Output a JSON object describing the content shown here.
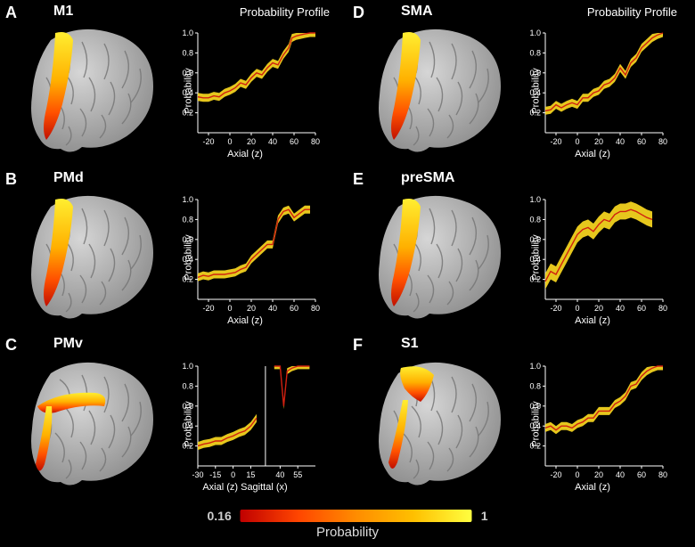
{
  "panels": [
    {
      "letter": "A",
      "title": "M1",
      "chartTitle": "Probability Profile",
      "ylim": [
        0,
        1
      ],
      "xlim": [
        -30,
        80
      ],
      "xaxis_label": "Axial  (z)",
      "yaxis_label": "Probability",
      "yticks": [
        0.2,
        0.4,
        0.6,
        0.8,
        1.0
      ],
      "xticks": [
        -20,
        0,
        20,
        40,
        60,
        80
      ],
      "line_color": "#d02010",
      "band_color": "#ffdd20",
      "data": [
        [
          -30,
          0.36
        ],
        [
          -25,
          0.35
        ],
        [
          -20,
          0.35
        ],
        [
          -15,
          0.37
        ],
        [
          -10,
          0.36
        ],
        [
          -5,
          0.4
        ],
        [
          0,
          0.42
        ],
        [
          5,
          0.45
        ],
        [
          10,
          0.5
        ],
        [
          15,
          0.48
        ],
        [
          20,
          0.55
        ],
        [
          25,
          0.6
        ],
        [
          30,
          0.58
        ],
        [
          35,
          0.65
        ],
        [
          40,
          0.7
        ],
        [
          45,
          0.68
        ],
        [
          50,
          0.78
        ],
        [
          55,
          0.85
        ],
        [
          58,
          0.95
        ],
        [
          62,
          0.97
        ],
        [
          66,
          0.98
        ],
        [
          70,
          0.99
        ],
        [
          75,
          1.0
        ],
        [
          80,
          1.0
        ]
      ]
    },
    {
      "letter": "B",
      "title": "PMd",
      "chartTitle": "",
      "ylim": [
        0,
        1
      ],
      "xlim": [
        -30,
        80
      ],
      "xaxis_label": "Axial  (z)",
      "yaxis_label": "Probability",
      "yticks": [
        0.2,
        0.4,
        0.6,
        0.8,
        1.0
      ],
      "xticks": [
        -20,
        0,
        20,
        40,
        60,
        80
      ],
      "line_color": "#d02010",
      "band_color": "#ffdd20",
      "data": [
        [
          -30,
          0.22
        ],
        [
          -25,
          0.24
        ],
        [
          -20,
          0.23
        ],
        [
          -15,
          0.25
        ],
        [
          -10,
          0.25
        ],
        [
          -5,
          0.25
        ],
        [
          0,
          0.26
        ],
        [
          5,
          0.27
        ],
        [
          10,
          0.3
        ],
        [
          15,
          0.32
        ],
        [
          20,
          0.4
        ],
        [
          25,
          0.45
        ],
        [
          30,
          0.5
        ],
        [
          35,
          0.55
        ],
        [
          40,
          0.55
        ],
        [
          45,
          0.8
        ],
        [
          50,
          0.88
        ],
        [
          55,
          0.9
        ],
        [
          60,
          0.82
        ],
        [
          65,
          0.86
        ],
        [
          70,
          0.9
        ],
        [
          75,
          0.9
        ]
      ]
    },
    {
      "letter": "C",
      "title": "PMv",
      "chartTitle": "",
      "ylim": [
        0,
        1
      ],
      "xlim": [
        -30,
        70
      ],
      "xaxis_label": "Axial (z)        Sagittal (x)",
      "yaxis_label": "Probability",
      "yticks": [
        0.2,
        0.4,
        0.6,
        0.8,
        1.0
      ],
      "xticks": [
        -30,
        -15,
        0,
        15,
        40,
        55
      ],
      "line_color": "#d02010",
      "band_color": "#ffdd20",
      "split": true,
      "data": [
        [
          -30,
          0.2
        ],
        [
          -25,
          0.22
        ],
        [
          -20,
          0.23
        ],
        [
          -15,
          0.25
        ],
        [
          -10,
          0.25
        ],
        [
          -5,
          0.28
        ],
        [
          0,
          0.3
        ],
        [
          5,
          0.33
        ],
        [
          10,
          0.35
        ],
        [
          15,
          0.4
        ],
        [
          20,
          0.48
        ]
      ],
      "data2": [
        [
          35,
          1.0
        ],
        [
          40,
          1.0
        ],
        [
          43,
          0.6
        ],
        [
          46,
          0.95
        ],
        [
          50,
          0.98
        ],
        [
          55,
          1.0
        ],
        [
          60,
          1.0
        ],
        [
          65,
          1.0
        ]
      ]
    },
    {
      "letter": "D",
      "title": "SMA",
      "chartTitle": "Probability Profile",
      "ylim": [
        0,
        1
      ],
      "xlim": [
        -30,
        80
      ],
      "xaxis_label": "Axial  (z)",
      "yaxis_label": "Probability",
      "yticks": [
        0.2,
        0.4,
        0.6,
        0.8,
        1.0
      ],
      "xticks": [
        -20,
        0,
        20,
        40,
        60,
        80
      ],
      "line_color": "#d02010",
      "band_color": "#ffdd20",
      "data": [
        [
          -30,
          0.22
        ],
        [
          -25,
          0.23
        ],
        [
          -20,
          0.28
        ],
        [
          -15,
          0.25
        ],
        [
          -10,
          0.28
        ],
        [
          -5,
          0.3
        ],
        [
          0,
          0.28
        ],
        [
          5,
          0.35
        ],
        [
          10,
          0.35
        ],
        [
          15,
          0.4
        ],
        [
          20,
          0.42
        ],
        [
          25,
          0.48
        ],
        [
          30,
          0.5
        ],
        [
          35,
          0.55
        ],
        [
          40,
          0.65
        ],
        [
          45,
          0.58
        ],
        [
          50,
          0.7
        ],
        [
          55,
          0.75
        ],
        [
          60,
          0.85
        ],
        [
          65,
          0.9
        ],
        [
          70,
          0.95
        ],
        [
          75,
          0.98
        ],
        [
          80,
          1.0
        ]
      ]
    },
    {
      "letter": "E",
      "title": "preSMA",
      "chartTitle": "",
      "ylim": [
        0,
        1
      ],
      "xlim": [
        -30,
        80
      ],
      "xaxis_label": "Axial  (z)",
      "yaxis_label": "Probability",
      "yticks": [
        0.2,
        0.4,
        0.6,
        0.8,
        1.0
      ],
      "xticks": [
        -20,
        0,
        20,
        40,
        60,
        80
      ],
      "line_color": "#d02010",
      "band_color": "#ffdd20",
      "data": [
        [
          -30,
          0.18
        ],
        [
          -25,
          0.28
        ],
        [
          -20,
          0.25
        ],
        [
          -15,
          0.35
        ],
        [
          -10,
          0.45
        ],
        [
          -5,
          0.55
        ],
        [
          0,
          0.65
        ],
        [
          5,
          0.7
        ],
        [
          10,
          0.72
        ],
        [
          15,
          0.68
        ],
        [
          20,
          0.75
        ],
        [
          25,
          0.8
        ],
        [
          30,
          0.78
        ],
        [
          35,
          0.85
        ],
        [
          40,
          0.88
        ],
        [
          45,
          0.88
        ],
        [
          50,
          0.9
        ],
        [
          55,
          0.88
        ],
        [
          60,
          0.85
        ],
        [
          65,
          0.82
        ],
        [
          70,
          0.8
        ]
      ]
    },
    {
      "letter": "F",
      "title": "S1",
      "chartTitle": "",
      "ylim": [
        0,
        1
      ],
      "xlim": [
        -30,
        80
      ],
      "xaxis_label": "Axial  (z)",
      "yaxis_label": "Probability",
      "yticks": [
        0.2,
        0.4,
        0.6,
        0.8,
        1.0
      ],
      "xticks": [
        -20,
        0,
        20,
        40,
        60,
        80
      ],
      "line_color": "#d02010",
      "band_color": "#ffdd20",
      "data": [
        [
          -30,
          0.38
        ],
        [
          -25,
          0.4
        ],
        [
          -20,
          0.36
        ],
        [
          -15,
          0.4
        ],
        [
          -10,
          0.4
        ],
        [
          -5,
          0.38
        ],
        [
          0,
          0.42
        ],
        [
          5,
          0.44
        ],
        [
          10,
          0.48
        ],
        [
          15,
          0.48
        ],
        [
          20,
          0.55
        ],
        [
          25,
          0.55
        ],
        [
          30,
          0.55
        ],
        [
          35,
          0.62
        ],
        [
          40,
          0.65
        ],
        [
          45,
          0.7
        ],
        [
          50,
          0.8
        ],
        [
          55,
          0.82
        ],
        [
          60,
          0.9
        ],
        [
          65,
          0.95
        ],
        [
          70,
          0.98
        ],
        [
          75,
          1.0
        ],
        [
          80,
          1.0
        ]
      ]
    }
  ],
  "colorbar": {
    "min_label": "0.16",
    "max_label": "1",
    "title": "Probability",
    "gradient": [
      "#c00000",
      "#ff4500",
      "#ff8c00",
      "#ffc000",
      "#ffff40"
    ]
  },
  "brain_gray": "#b8b8b8",
  "brain_highlight_gradient": [
    "#c01000",
    "#ff6000",
    "#ffb000",
    "#ffe030"
  ],
  "background": "#000000",
  "tick_fontsize": 10,
  "label_fontsize": 11,
  "title_fontsize": 16,
  "letter_fontsize": 18
}
